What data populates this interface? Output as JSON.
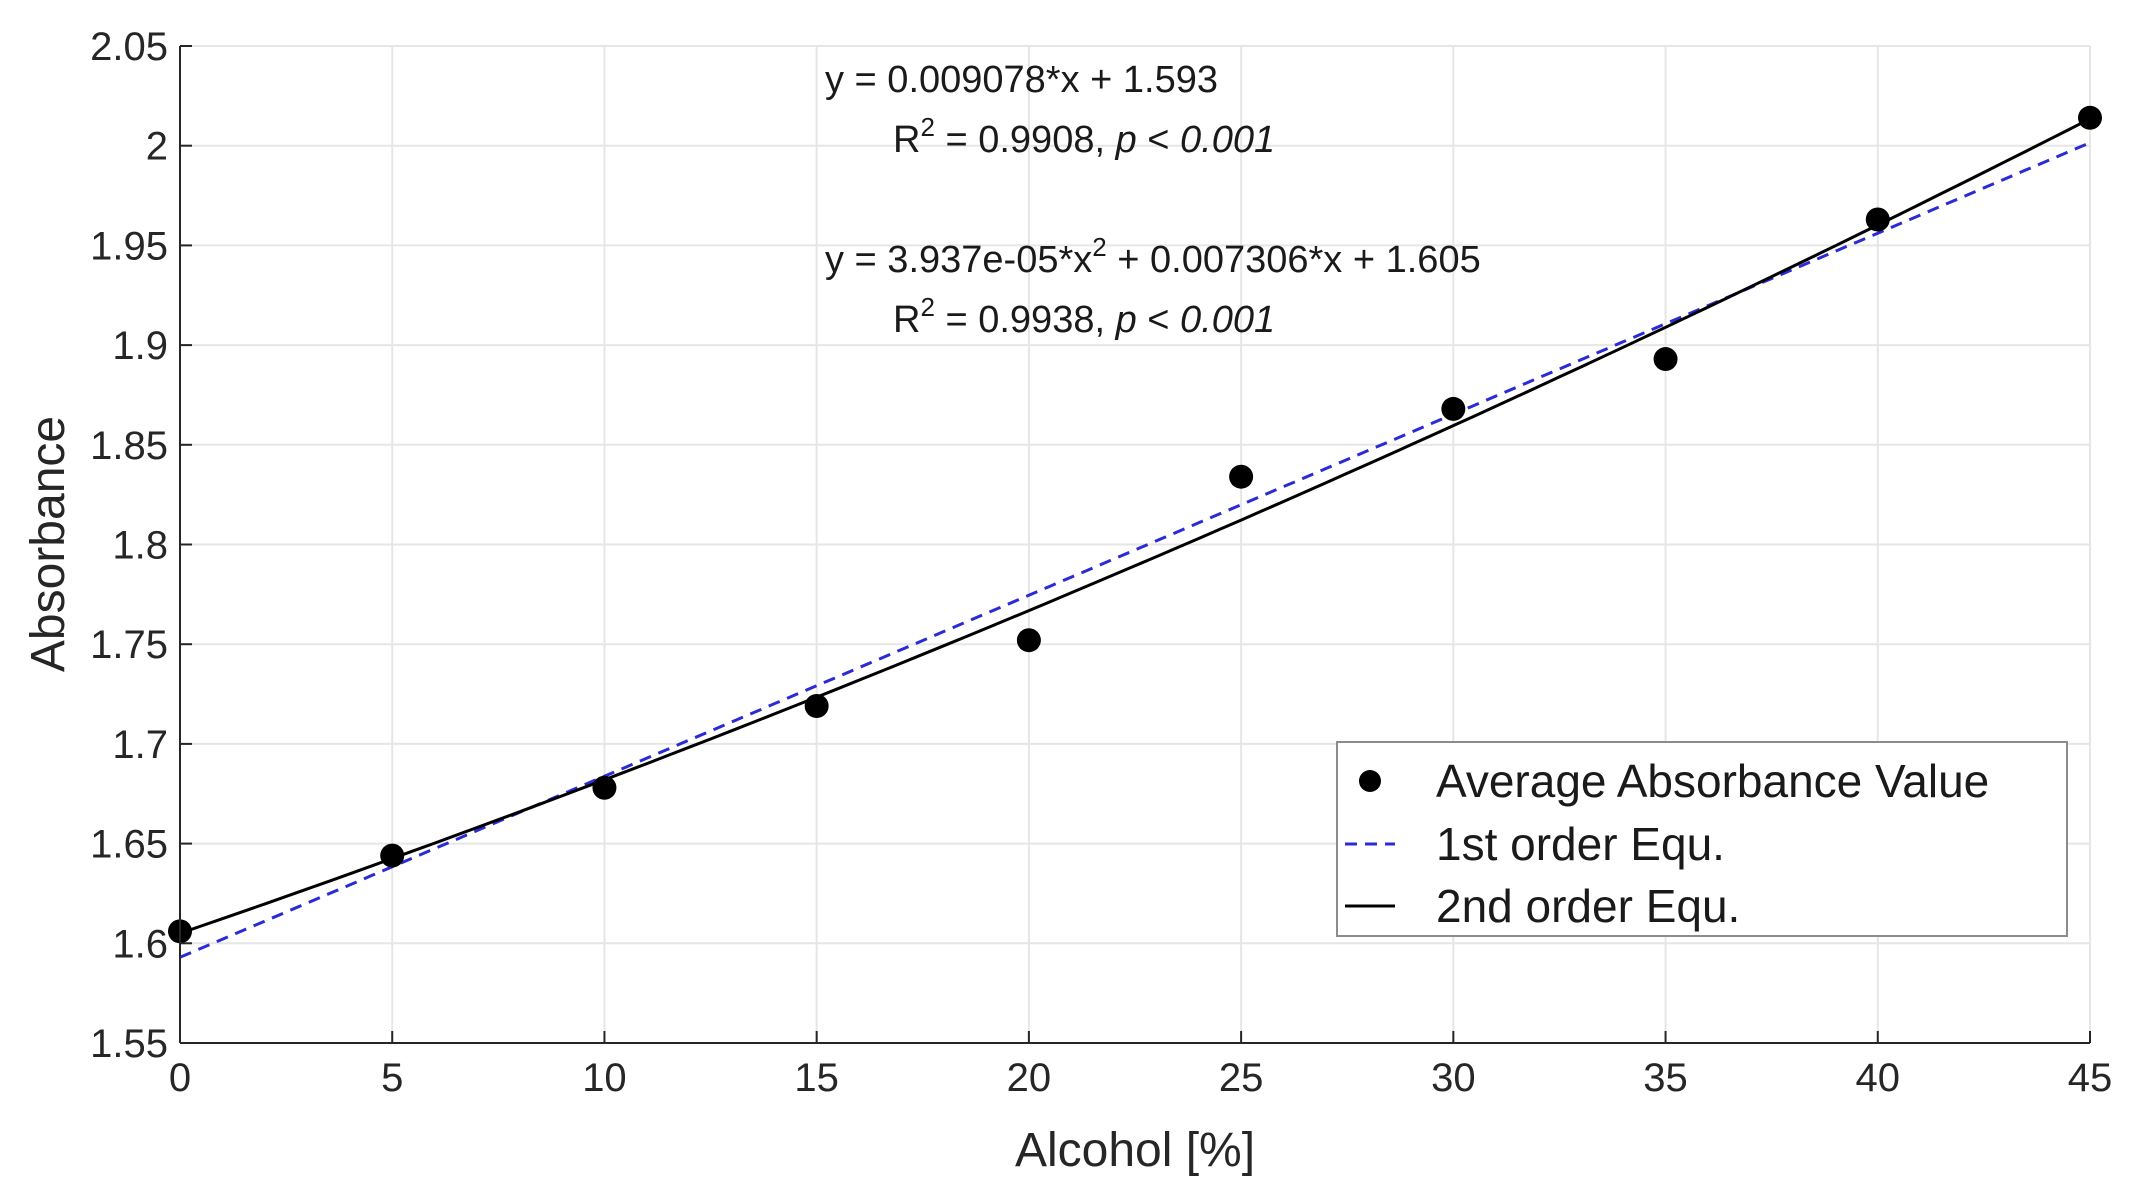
{
  "chart_data": {
    "type": "scatter",
    "title": "",
    "xlabel": "Alcohol [%]",
    "ylabel": "Absorbance",
    "xlim": [
      0,
      45
    ],
    "ylim": [
      1.55,
      2.05
    ],
    "grid": true,
    "xticks": [
      0,
      5,
      10,
      15,
      20,
      25,
      30,
      35,
      40,
      45
    ],
    "xtick_labels": [
      "0",
      "5",
      "10",
      "15",
      "20",
      "25",
      "30",
      "35",
      "40",
      "45"
    ],
    "yticks": [
      1.55,
      1.6,
      1.65,
      1.7,
      1.75,
      1.8,
      1.85,
      1.9,
      1.95,
      2.0,
      2.05
    ],
    "ytick_labels": [
      "1.55",
      "1.6",
      "1.65",
      "1.7",
      "1.75",
      "1.8",
      "1.85",
      "1.9",
      "1.95",
      "2",
      "2.05"
    ],
    "series": [
      {
        "name": "Average Absorbance Value",
        "kind": "scatter",
        "color": "#000000",
        "x": [
          0,
          5,
          10,
          15,
          20,
          25,
          30,
          35,
          40,
          45
        ],
        "y": [
          1.606,
          1.644,
          1.678,
          1.719,
          1.752,
          1.834,
          1.868,
          1.893,
          1.963,
          2.014
        ]
      },
      {
        "name": "1st order Equ.",
        "kind": "line",
        "style": "dashed",
        "color": "#2b2bd6",
        "coefficients": [
          0.009078,
          1.593
        ]
      },
      {
        "name": "2nd order Equ.",
        "kind": "line",
        "style": "solid",
        "color": "#000000",
        "coefficients": [
          3.937e-05,
          0.007306,
          1.605
        ]
      }
    ],
    "annotations": [
      {
        "eq_prefix": "y = 0.009078*x + 1.593",
        "eq_suffix": "",
        "r2_label": "R",
        "r2_exp": "2",
        "r2_value": " = 0.9908, ",
        "p_symbol": "p",
        "p_relation": " < ",
        "p_value": "0.001"
      },
      {
        "eq_prefix": "y = 3.937e-05*x",
        "eq_exp": "2",
        "eq_suffix": " + 0.007306*x + 1.605",
        "r2_label": "R",
        "r2_exp": "2",
        "r2_value": " = 0.9938, ",
        "p_symbol": "p",
        "p_relation": " < ",
        "p_value": "0.001"
      }
    ],
    "legend": {
      "position": "bottom-right",
      "entries": [
        "Average Absorbance Value",
        "1st order Equ.",
        "2nd order Equ."
      ]
    }
  }
}
